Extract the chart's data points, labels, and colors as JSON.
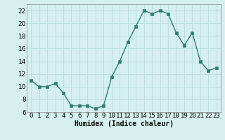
{
  "x": [
    0,
    1,
    2,
    3,
    4,
    5,
    6,
    7,
    8,
    9,
    10,
    11,
    12,
    13,
    14,
    15,
    16,
    17,
    18,
    19,
    20,
    21,
    22,
    23
  ],
  "y": [
    11,
    10,
    10,
    10.5,
    9,
    7,
    7,
    7,
    6.5,
    7,
    11.5,
    14,
    17,
    19.5,
    22,
    21.5,
    22,
    21.5,
    18.5,
    16.5,
    18.5,
    14,
    12.5,
    13
  ],
  "line_color": "#2e7d6e",
  "marker_color": "#2e7d6e",
  "bg_color": "#d6f0ef",
  "grid_color": "#b8dedd",
  "xlabel": "Humidex (Indice chaleur)",
  "xlim": [
    -0.5,
    23.5
  ],
  "ylim": [
    6,
    23
  ],
  "yticks": [
    6,
    8,
    10,
    12,
    14,
    16,
    18,
    20,
    22
  ],
  "xtick_labels": [
    "0",
    "1",
    "2",
    "3",
    "4",
    "5",
    "6",
    "7",
    "8",
    "9",
    "10",
    "11",
    "12",
    "13",
    "14",
    "15",
    "16",
    "17",
    "18",
    "19",
    "20",
    "21",
    "22",
    "23"
  ],
  "xlabel_fontsize": 7,
  "tick_fontsize": 6.5,
  "line_width": 1.0,
  "marker_size": 2.5
}
